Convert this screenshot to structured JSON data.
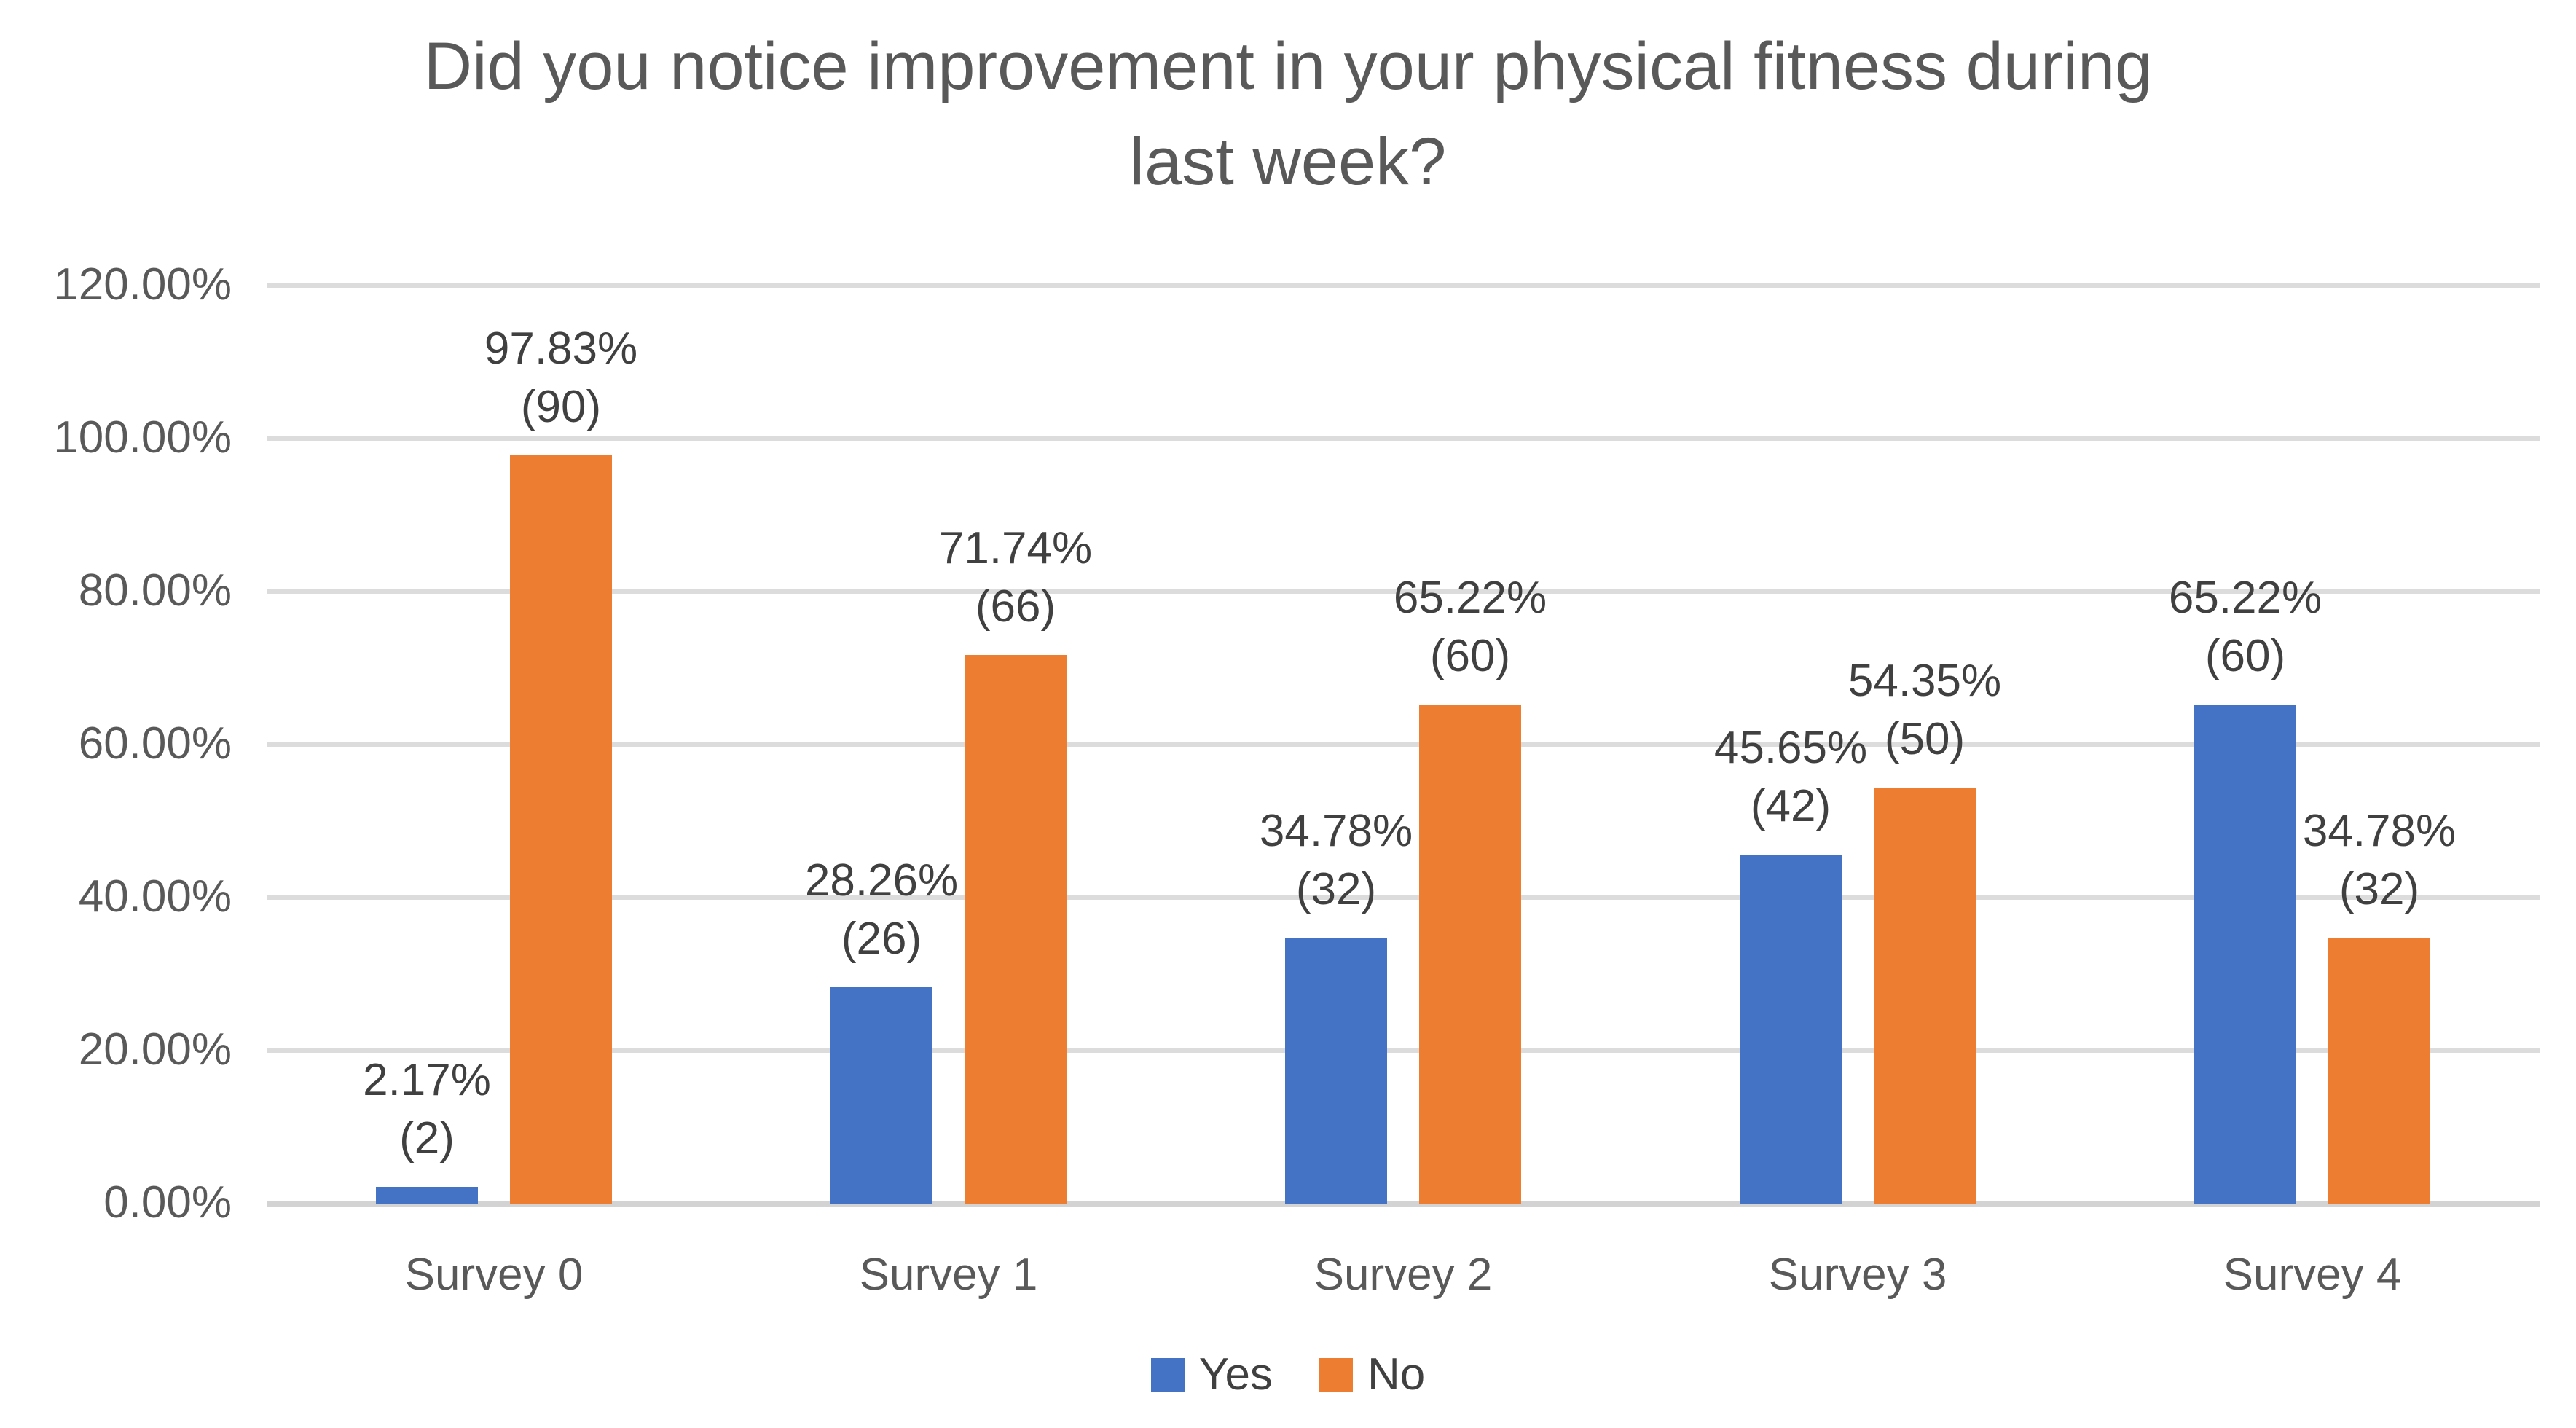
{
  "chart_data": {
    "type": "bar",
    "title": "Did you notice improvement in your physical fitness during last week?",
    "title_lines": [
      "Did you notice improvement in your physical fitness during",
      "last week?"
    ],
    "categories": [
      "Survey 0",
      "Survey 1",
      "Survey 2",
      "Survey 3",
      "Survey 4"
    ],
    "series": [
      {
        "name": "Yes",
        "color": "#4472C4",
        "values": [
          2.17,
          28.26,
          34.78,
          45.65,
          65.22
        ],
        "counts": [
          2,
          26,
          32,
          42,
          60
        ],
        "pct_labels": [
          "2.17%",
          "28.26%",
          "34.78%",
          "45.65%",
          "65.22%"
        ],
        "count_labels": [
          "(2)",
          "(26)",
          "(32)",
          "(42)",
          "(60)"
        ]
      },
      {
        "name": "No",
        "color": "#ED7D31",
        "values": [
          97.83,
          71.74,
          65.22,
          54.35,
          34.78
        ],
        "counts": [
          90,
          66,
          60,
          50,
          32
        ],
        "pct_labels": [
          "97.83%",
          "71.74%",
          "65.22%",
          "54.35%",
          "34.78%"
        ],
        "count_labels": [
          "(90)",
          "(66)",
          "(60)",
          "(50)",
          "(32)"
        ]
      }
    ],
    "y_axis": {
      "min": 0,
      "max": 120,
      "step": 20,
      "tick_labels": [
        "0.00%",
        "20.00%",
        "40.00%",
        "60.00%",
        "80.00%",
        "100.00%",
        "120.00%"
      ]
    },
    "grid": true,
    "legend_position": "bottom",
    "colors": {
      "yes_blue": "#4472C4",
      "no_orange": "#ED7D31",
      "gridline": "#DCDCDC",
      "axis_line": "#D3D3D3",
      "title_text": "#595959",
      "tick_text": "#595959",
      "data_label_text": "#404040"
    }
  }
}
